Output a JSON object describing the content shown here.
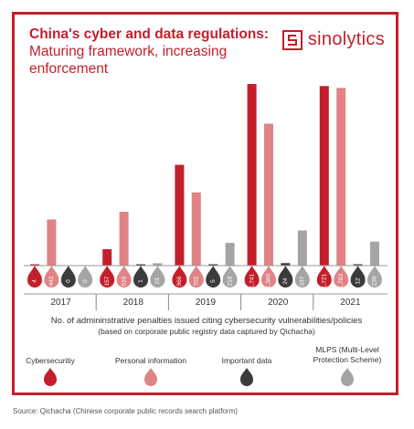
{
  "header": {
    "title_bold": "China's cyber and data regulations:",
    "title_rest": "Maturing framework, increasing enforcement"
  },
  "logo": {
    "text": "sinolytics",
    "icon": "sinolytics-logo-icon"
  },
  "colors": {
    "brand": "#c31f2a",
    "cybersecurity": "#c31f2a",
    "personal_information": "#e08386",
    "important_data": "#3d3a3b",
    "mlps": "#a5a5a5",
    "text_dark": "#333333"
  },
  "chart_data": {
    "type": "bar",
    "categories": [
      "2017",
      "2018",
      "2019",
      "2020",
      "2021"
    ],
    "series": [
      {
        "name": "Cybersecurity",
        "values": [
          4,
          157,
          966,
          1741,
          1721
        ],
        "labels": [
          "4",
          "157",
          "966",
          "1,741",
          "1,721"
        ]
      },
      {
        "name": "Personal information",
        "values": [
          442,
          516,
          702,
          1360,
          1703
        ],
        "labels": [
          "442",
          "516",
          "702",
          "1,360",
          "1,703"
        ]
      },
      {
        "name": "Important data",
        "values": [
          0,
          1,
          5,
          24,
          12
        ],
        "labels": [
          "0",
          "1",
          "5",
          "24",
          "12"
        ]
      },
      {
        "name": "MLPS (Multi-Level Protection Scheme)",
        "values": [
          0,
          23,
          218,
          337,
          230
        ],
        "labels": [
          "0",
          "23",
          "218",
          "337",
          "230"
        ]
      }
    ],
    "title": "No. of admininstrative penalties issued citing cybersecurity vulnerabilities/policies",
    "subtitle": "(based on corporate public registry data captured by Qichacha)",
    "grid": false,
    "legend_position": "bottom"
  },
  "legend": [
    {
      "label": "Cybersecuritiy",
      "color": "#c31f2a"
    },
    {
      "label": "Personal information",
      "color": "#e08386"
    },
    {
      "label": "Important data",
      "color": "#3d3a3b"
    },
    {
      "label": "MLPS (Multi-Level Protection Scheme)",
      "color": "#a5a5a5"
    }
  ],
  "footer": {
    "source": "Source: Qichacha (Chinese corporate public records search platform)"
  }
}
